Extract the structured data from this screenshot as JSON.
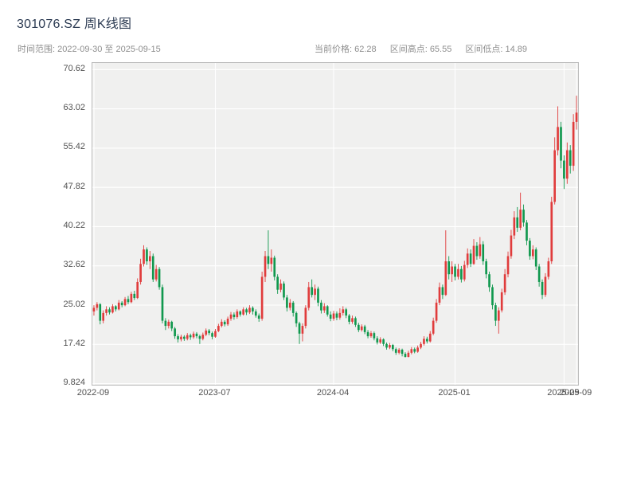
{
  "header": {
    "title": "301076.SZ 周K线图",
    "subtitle": "时间范围: 2022-09-30 至 2025-09-15",
    "stats": [
      {
        "label": "当前价格",
        "value": "62.28",
        "text": "当前价格: 62.28"
      },
      {
        "label": "区间高点",
        "value": "65.55",
        "text": "区间高点: 65.55"
      },
      {
        "label": "区间低点",
        "value": "14.89",
        "text": "区间低点: 14.89"
      }
    ]
  },
  "colors": {
    "up": "#e03c3c",
    "down": "#10984e",
    "title": "#2b3a52",
    "subtitle": "#8e8e8e",
    "plot_bg": "#f0f0ef",
    "grid": "#ffffff",
    "axis_text": "#515151",
    "border": "#bdbdbd",
    "page_bg": "#ffffff"
  },
  "chart_data": {
    "type": "candlestick",
    "title": "301076.SZ 周K线图",
    "interval": "weekly",
    "date_range": {
      "start": "2022-09-30",
      "end": "2025-09-15"
    },
    "current_price": 62.28,
    "range_high": 65.55,
    "range_low": 14.89,
    "grid": true,
    "legend": false,
    "xlabel": "",
    "ylabel": "",
    "ylim": [
      9.6,
      71.9
    ],
    "y_ticks": [
      "70.62",
      "63.02",
      "55.42",
      "47.82",
      "40.22",
      "32.62",
      "25.02",
      "17.42",
      "9.824"
    ],
    "y_tick_values": [
      70.62,
      63.02,
      55.42,
      47.82,
      40.22,
      32.62,
      25.02,
      17.42,
      9.824
    ],
    "x_ticks": [
      {
        "label": "2022-09",
        "index": 0
      },
      {
        "label": "2023-07",
        "index": 39
      },
      {
        "label": "2024-04",
        "index": 77
      },
      {
        "label": "2025-01",
        "index": 116
      },
      {
        "label": "2025-09",
        "index": 151
      },
      {
        "label": "2025-09",
        "index": 155
      }
    ],
    "up_color": "#e03c3c",
    "down_color": "#10984e",
    "candles_format": [
      "open",
      "high",
      "low",
      "close"
    ],
    "candles": [
      [
        23.8,
        25.0,
        23.0,
        24.5
      ],
      [
        24.5,
        25.6,
        24.0,
        25.2
      ],
      [
        25.2,
        25.4,
        21.3,
        22.0
      ],
      [
        22.0,
        24.0,
        21.5,
        23.5
      ],
      [
        23.5,
        24.8,
        23.0,
        24.2
      ],
      [
        24.2,
        24.6,
        23.2,
        23.6
      ],
      [
        23.6,
        25.2,
        23.4,
        24.8
      ],
      [
        24.8,
        25.0,
        23.8,
        24.2
      ],
      [
        24.2,
        26.0,
        24.0,
        25.5
      ],
      [
        25.5,
        25.8,
        24.6,
        25.0
      ],
      [
        25.0,
        26.6,
        24.8,
        26.2
      ],
      [
        26.2,
        26.8,
        25.2,
        25.6
      ],
      [
        25.6,
        27.6,
        25.4,
        27.2
      ],
      [
        27.2,
        27.8,
        26.0,
        26.4
      ],
      [
        26.4,
        30.2,
        26.2,
        29.5
      ],
      [
        29.5,
        34.0,
        29.0,
        33.0
      ],
      [
        33.0,
        36.6,
        32.5,
        35.8
      ],
      [
        35.8,
        36.2,
        32.8,
        33.5
      ],
      [
        33.5,
        35.5,
        32.0,
        34.5
      ],
      [
        34.5,
        35.0,
        29.5,
        30.0
      ],
      [
        30.0,
        32.8,
        29.6,
        32.0
      ],
      [
        32.0,
        32.4,
        28.0,
        28.5
      ],
      [
        28.5,
        29.0,
        21.5,
        22.0
      ],
      [
        22.0,
        22.5,
        20.2,
        21.0
      ],
      [
        21.0,
        22.2,
        20.5,
        21.8
      ],
      [
        21.8,
        22.0,
        20.0,
        20.5
      ],
      [
        20.5,
        20.8,
        18.5,
        19.0
      ],
      [
        19.0,
        19.4,
        17.8,
        18.4
      ],
      [
        18.4,
        19.3,
        18.0,
        18.9
      ],
      [
        18.9,
        19.2,
        18.1,
        18.5
      ],
      [
        18.5,
        19.6,
        18.2,
        19.2
      ],
      [
        19.2,
        19.5,
        18.3,
        18.8
      ],
      [
        18.8,
        19.9,
        18.5,
        19.5
      ],
      [
        19.5,
        19.8,
        18.6,
        19.0
      ],
      [
        19.0,
        19.3,
        17.5,
        18.5
      ],
      [
        18.5,
        19.7,
        18.2,
        19.3
      ],
      [
        19.3,
        20.5,
        19.0,
        20.1
      ],
      [
        20.1,
        20.4,
        19.2,
        19.6
      ],
      [
        19.6,
        19.9,
        18.4,
        18.9
      ],
      [
        18.9,
        20.4,
        18.7,
        20.0
      ],
      [
        20.0,
        21.4,
        19.8,
        21.0
      ],
      [
        21.0,
        22.3,
        20.7,
        21.8
      ],
      [
        21.8,
        22.1,
        20.9,
        21.3
      ],
      [
        21.3,
        22.8,
        21.0,
        22.4
      ],
      [
        22.4,
        23.7,
        22.0,
        23.2
      ],
      [
        23.2,
        23.6,
        22.2,
        22.7
      ],
      [
        22.7,
        24.2,
        22.4,
        23.8
      ],
      [
        23.8,
        24.0,
        22.8,
        23.2
      ],
      [
        23.2,
        24.6,
        23.0,
        24.2
      ],
      [
        24.2,
        24.5,
        23.1,
        23.6
      ],
      [
        23.6,
        25.0,
        23.3,
        24.5
      ],
      [
        24.5,
        24.8,
        23.2,
        23.8
      ],
      [
        23.8,
        24.2,
        22.6,
        23.0
      ],
      [
        23.0,
        23.4,
        21.8,
        22.4
      ],
      [
        22.4,
        31.5,
        22.0,
        30.5
      ],
      [
        30.5,
        35.5,
        29.5,
        34.5
      ],
      [
        34.5,
        39.5,
        32.0,
        33.0
      ],
      [
        33.0,
        35.8,
        31.5,
        34.2
      ],
      [
        34.2,
        34.6,
        29.8,
        30.5
      ],
      [
        30.5,
        31.0,
        27.2,
        28.0
      ],
      [
        28.0,
        30.0,
        27.5,
        29.2
      ],
      [
        29.2,
        29.6,
        26.0,
        26.5
      ],
      [
        26.5,
        27.0,
        23.8,
        24.5
      ],
      [
        24.5,
        26.2,
        24.0,
        25.5
      ],
      [
        25.5,
        25.8,
        22.8,
        23.5
      ],
      [
        23.5,
        23.8,
        20.8,
        21.5
      ],
      [
        21.5,
        21.8,
        17.5,
        19.5
      ],
      [
        19.5,
        21.5,
        18.0,
        21.0
      ],
      [
        21.0,
        25.0,
        20.5,
        24.5
      ],
      [
        24.5,
        29.5,
        24.0,
        28.5
      ],
      [
        28.5,
        30.0,
        26.5,
        27.0
      ],
      [
        27.0,
        29.0,
        26.0,
        28.2
      ],
      [
        28.2,
        28.6,
        24.8,
        25.5
      ],
      [
        25.5,
        26.0,
        23.4,
        24.0
      ],
      [
        24.0,
        25.4,
        23.5,
        24.8
      ],
      [
        24.8,
        25.0,
        22.8,
        23.2
      ],
      [
        23.2,
        23.8,
        21.9,
        22.4
      ],
      [
        22.4,
        23.9,
        22.0,
        23.4
      ],
      [
        23.4,
        23.8,
        22.1,
        22.6
      ],
      [
        22.6,
        24.4,
        22.2,
        23.5
      ],
      [
        23.5,
        24.8,
        23.0,
        24.2
      ],
      [
        24.2,
        24.5,
        22.5,
        23.0
      ],
      [
        23.0,
        23.3,
        21.3,
        21.8
      ],
      [
        21.8,
        23.0,
        21.4,
        22.5
      ],
      [
        22.5,
        22.8,
        20.8,
        21.2
      ],
      [
        21.2,
        21.6,
        19.8,
        20.2
      ],
      [
        20.2,
        21.3,
        19.9,
        20.9
      ],
      [
        20.9,
        21.2,
        19.4,
        19.8
      ],
      [
        19.8,
        20.2,
        18.6,
        19.0
      ],
      [
        19.0,
        20.0,
        18.7,
        19.6
      ],
      [
        19.6,
        19.9,
        18.2,
        18.6
      ],
      [
        18.6,
        19.0,
        17.4,
        17.8
      ],
      [
        17.8,
        18.8,
        17.5,
        18.4
      ],
      [
        18.4,
        18.6,
        17.1,
        17.5
      ],
      [
        17.5,
        17.8,
        16.4,
        16.8
      ],
      [
        16.8,
        17.7,
        16.5,
        17.3
      ],
      [
        17.3,
        17.5,
        16.1,
        16.5
      ],
      [
        16.5,
        16.8,
        15.4,
        15.8
      ],
      [
        15.8,
        16.7,
        15.5,
        16.4
      ],
      [
        16.4,
        16.6,
        15.1,
        15.6
      ],
      [
        15.6,
        15.9,
        14.89,
        15.0
      ],
      [
        15.0,
        16.2,
        14.9,
        15.8
      ],
      [
        15.8,
        16.9,
        15.5,
        16.5
      ],
      [
        16.5,
        16.8,
        15.7,
        16.0
      ],
      [
        16.0,
        17.2,
        15.8,
        16.8
      ],
      [
        16.8,
        17.9,
        16.5,
        17.5
      ],
      [
        17.5,
        19.0,
        17.2,
        18.5
      ],
      [
        18.5,
        18.9,
        17.6,
        18.0
      ],
      [
        18.0,
        20.0,
        17.8,
        19.5
      ],
      [
        19.5,
        22.6,
        19.2,
        22.0
      ],
      [
        22.0,
        26.2,
        21.6,
        25.5
      ],
      [
        25.5,
        29.4,
        25.0,
        28.5
      ],
      [
        28.5,
        29.0,
        26.2,
        27.0
      ],
      [
        27.0,
        39.5,
        26.8,
        33.5
      ],
      [
        33.5,
        34.5,
        30.0,
        31.0
      ],
      [
        31.0,
        33.5,
        29.5,
        32.5
      ],
      [
        32.5,
        33.0,
        29.8,
        30.5
      ],
      [
        30.5,
        33.0,
        30.0,
        32.0
      ],
      [
        32.0,
        32.6,
        29.4,
        30.0
      ],
      [
        30.0,
        33.6,
        29.6,
        32.8
      ],
      [
        32.8,
        36.0,
        32.2,
        35.0
      ],
      [
        35.0,
        35.8,
        32.4,
        33.0
      ],
      [
        33.0,
        37.8,
        32.8,
        36.5
      ],
      [
        36.5,
        37.2,
        33.8,
        34.5
      ],
      [
        34.5,
        38.2,
        34.0,
        36.8
      ],
      [
        36.8,
        37.4,
        32.8,
        33.5
      ],
      [
        33.5,
        34.0,
        30.2,
        31.0
      ],
      [
        31.0,
        31.5,
        27.6,
        28.5
      ],
      [
        28.5,
        29.0,
        24.2,
        25.0
      ],
      [
        25.0,
        25.5,
        21.0,
        22.0
      ],
      [
        22.0,
        24.6,
        19.5,
        24.0
      ],
      [
        24.0,
        28.2,
        23.6,
        27.5
      ],
      [
        27.5,
        32.0,
        27.0,
        31.0
      ],
      [
        31.0,
        35.4,
        30.4,
        34.5
      ],
      [
        34.5,
        39.6,
        34.0,
        38.5
      ],
      [
        38.5,
        43.2,
        37.8,
        42.0
      ],
      [
        42.0,
        44.0,
        39.2,
        40.0
      ],
      [
        40.0,
        46.8,
        39.5,
        43.5
      ],
      [
        43.5,
        44.5,
        40.2,
        41.0
      ],
      [
        41.0,
        41.5,
        36.6,
        37.5
      ],
      [
        37.5,
        38.0,
        33.8,
        34.5
      ],
      [
        34.5,
        36.6,
        33.9,
        35.8
      ],
      [
        35.8,
        36.2,
        31.8,
        32.5
      ],
      [
        32.5,
        33.0,
        28.6,
        29.5
      ],
      [
        29.5,
        30.0,
        26.2,
        27.0
      ],
      [
        27.0,
        31.2,
        26.6,
        30.5
      ],
      [
        30.5,
        34.2,
        30.0,
        33.5
      ],
      [
        33.5,
        46.0,
        33.0,
        45.0
      ],
      [
        45.0,
        57.5,
        44.5,
        55.0
      ],
      [
        55.0,
        63.5,
        54.0,
        59.5
      ],
      [
        59.5,
        60.5,
        51.5,
        53.0
      ],
      [
        53.0,
        54.0,
        47.5,
        49.5
      ],
      [
        49.5,
        56.5,
        48.5,
        55.0
      ],
      [
        55.0,
        56.0,
        50.5,
        52.0
      ],
      [
        52.0,
        62.0,
        51.0,
        60.5
      ],
      [
        60.5,
        65.55,
        59.0,
        62.28
      ]
    ]
  }
}
